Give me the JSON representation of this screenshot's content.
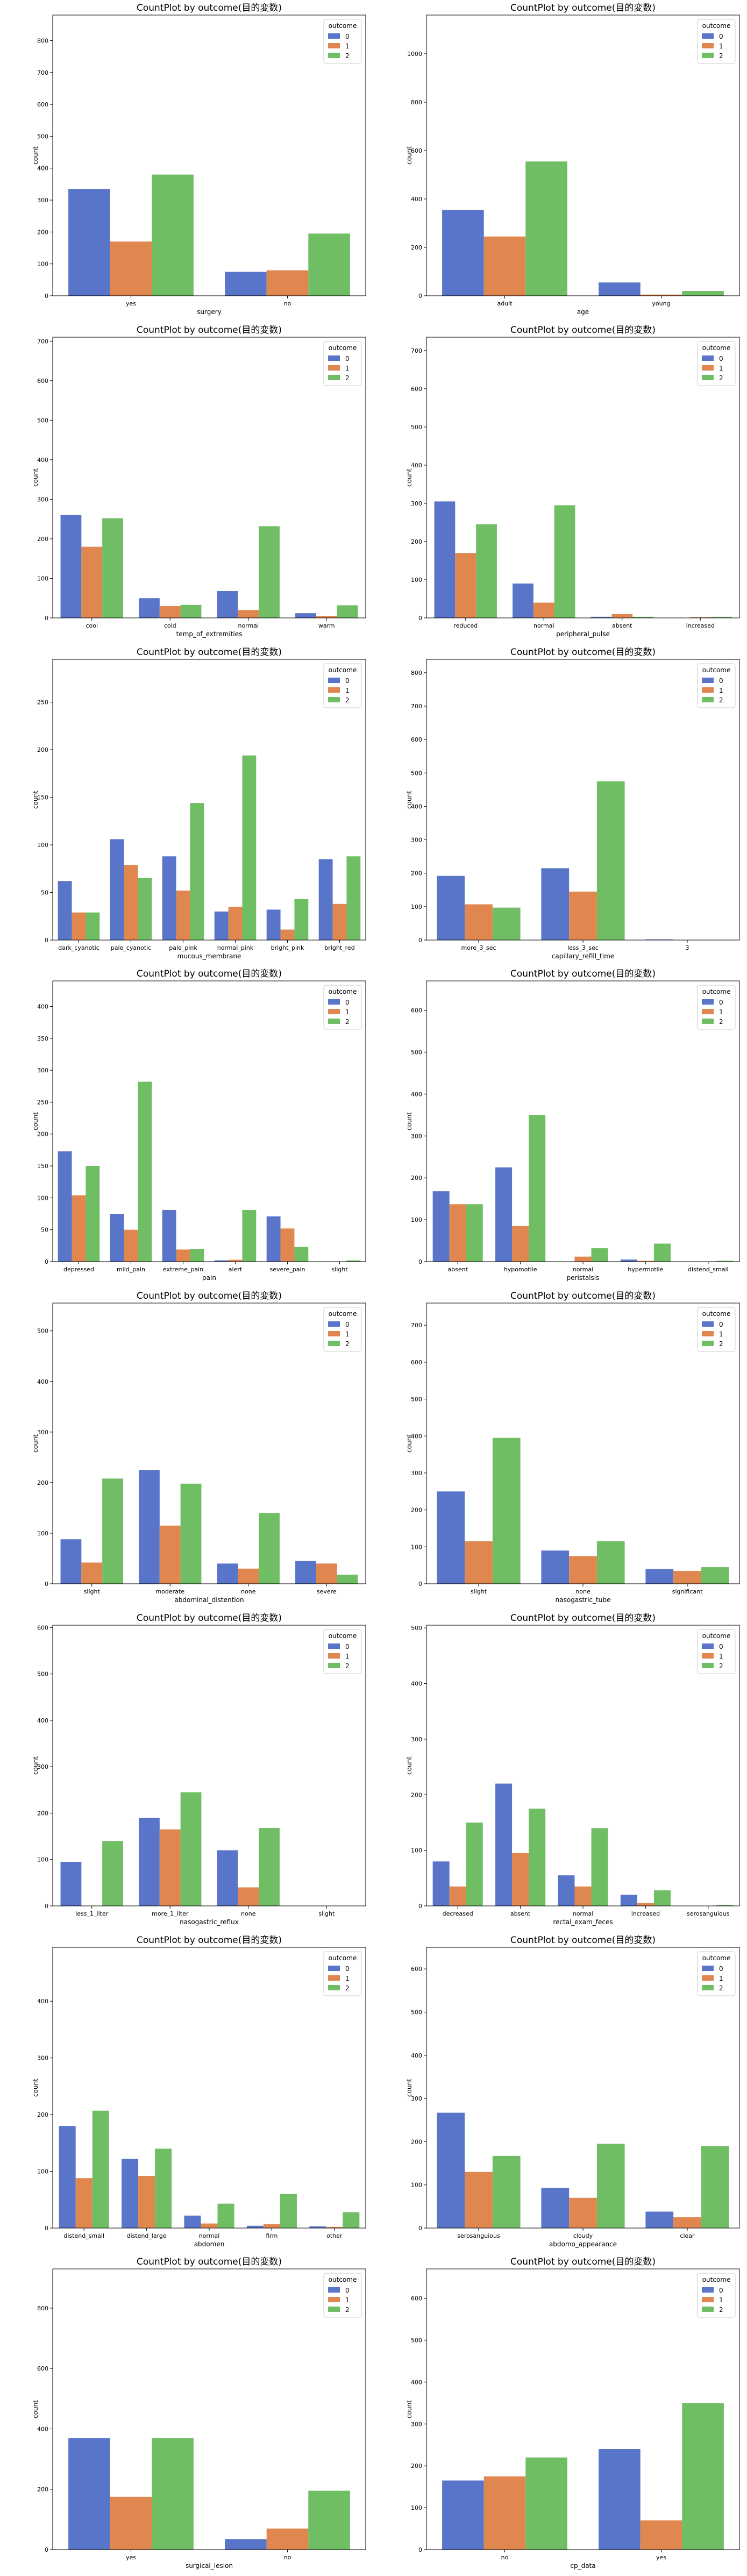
{
  "colors": {
    "0": "#5875ca",
    "1": "#e0874f",
    "2": "#70be64"
  },
  "chart_data": [
    {
      "type": "bar",
      "title": "CountPlot by outcome(目的変数)",
      "xlabel": "surgery",
      "ylabel": "count",
      "ylim": [
        0,
        880
      ],
      "yticks": [
        0,
        100,
        200,
        300,
        400,
        500,
        600,
        700,
        800
      ],
      "legend": {
        "title": "outcome",
        "position": "top-right",
        "labels": [
          "0",
          "1",
          "2"
        ]
      },
      "categories": [
        "yes",
        "no"
      ],
      "series": [
        {
          "name": "0",
          "values": [
            335,
            75
          ]
        },
        {
          "name": "1",
          "values": [
            170,
            80
          ]
        },
        {
          "name": "2",
          "values": [
            380,
            195
          ]
        }
      ]
    },
    {
      "type": "bar",
      "title": "CountPlot by outcome(目的変数)",
      "xlabel": "age",
      "ylabel": "count",
      "ylim": [
        0,
        1160
      ],
      "yticks": [
        0,
        200,
        400,
        600,
        800,
        1000
      ],
      "legend": {
        "title": "outcome",
        "position": "top-right",
        "labels": [
          "0",
          "1",
          "2"
        ]
      },
      "categories": [
        "adult",
        "young"
      ],
      "series": [
        {
          "name": "0",
          "values": [
            355,
            55
          ]
        },
        {
          "name": "1",
          "values": [
            245,
            5
          ]
        },
        {
          "name": "2",
          "values": [
            555,
            20
          ]
        }
      ]
    },
    {
      "type": "bar",
      "title": "CountPlot by outcome(目的変数)",
      "xlabel": "temp_of_extremities",
      "ylabel": "count",
      "ylim": [
        0,
        710
      ],
      "yticks": [
        0,
        100,
        200,
        300,
        400,
        500,
        600,
        700
      ],
      "legend": {
        "title": "outcome",
        "position": "top-right",
        "labels": [
          "0",
          "1",
          "2"
        ]
      },
      "categories": [
        "cool",
        "cold",
        "normal",
        "warm"
      ],
      "series": [
        {
          "name": "0",
          "values": [
            260,
            50,
            68,
            12
          ]
        },
        {
          "name": "1",
          "values": [
            180,
            30,
            20,
            5
          ]
        },
        {
          "name": "2",
          "values": [
            252,
            33,
            232,
            32
          ]
        }
      ]
    },
    {
      "type": "bar",
      "title": "CountPlot by outcome(目的変数)",
      "xlabel": "peripheral_pulse",
      "ylabel": "count",
      "ylim": [
        0,
        735
      ],
      "yticks": [
        0,
        100,
        200,
        300,
        400,
        500,
        600,
        700
      ],
      "legend": {
        "title": "outcome",
        "position": "top-right",
        "labels": [
          "0",
          "1",
          "2"
        ]
      },
      "categories": [
        "reduced",
        "normal",
        "absent",
        "increased"
      ],
      "series": [
        {
          "name": "0",
          "values": [
            305,
            90,
            3,
            0
          ]
        },
        {
          "name": "1",
          "values": [
            170,
            40,
            10,
            2
          ]
        },
        {
          "name": "2",
          "values": [
            245,
            295,
            3,
            3
          ]
        }
      ]
    },
    {
      "type": "bar",
      "title": "CountPlot by outcome(目的変数)",
      "xlabel": "mucous_membrane",
      "ylabel": "count",
      "ylim": [
        0,
        295
      ],
      "yticks": [
        0,
        50,
        100,
        150,
        200,
        250
      ],
      "legend": {
        "title": "outcome",
        "position": "top-right",
        "labels": [
          "0",
          "1",
          "2"
        ]
      },
      "categories": [
        "dark_cyanotic",
        "pale_cyanotic",
        "pale_pink",
        "normal_pink",
        "bright_pink",
        "bright_red"
      ],
      "series": [
        {
          "name": "0",
          "values": [
            62,
            106,
            88,
            30,
            32,
            85
          ]
        },
        {
          "name": "1",
          "values": [
            29,
            79,
            52,
            35,
            11,
            38
          ]
        },
        {
          "name": "2",
          "values": [
            29,
            65,
            144,
            194,
            43,
            88
          ]
        }
      ]
    },
    {
      "type": "bar",
      "title": "CountPlot by outcome(目的変数)",
      "xlabel": "capillary_refill_time",
      "ylabel": "count",
      "ylim": [
        0,
        840
      ],
      "yticks": [
        0,
        100,
        200,
        300,
        400,
        500,
        600,
        700,
        800
      ],
      "legend": {
        "title": "outcome",
        "position": "top-right",
        "labels": [
          "0",
          "1",
          "2"
        ]
      },
      "categories": [
        "more_3_sec",
        "less_3_sec",
        "3"
      ],
      "series": [
        {
          "name": "0",
          "values": [
            192,
            215,
            2
          ]
        },
        {
          "name": "1",
          "values": [
            107,
            145,
            0
          ]
        },
        {
          "name": "2",
          "values": [
            97,
            475,
            0
          ]
        }
      ]
    },
    {
      "type": "bar",
      "title": "CountPlot by outcome(目的変数)",
      "xlabel": "pain",
      "ylabel": "count",
      "ylim": [
        0,
        440
      ],
      "yticks": [
        0,
        50,
        100,
        150,
        200,
        250,
        300,
        350,
        400
      ],
      "legend": {
        "title": "outcome",
        "position": "top-right",
        "labels": [
          "0",
          "1",
          "2"
        ]
      },
      "categories": [
        "depressed",
        "mild_pain",
        "extreme_pain",
        "alert",
        "severe_pain",
        "slight"
      ],
      "series": [
        {
          "name": "0",
          "values": [
            173,
            75,
            81,
            2,
            71,
            0
          ]
        },
        {
          "name": "1",
          "values": [
            104,
            50,
            19,
            3,
            52,
            0
          ]
        },
        {
          "name": "2",
          "values": [
            150,
            282,
            20,
            81,
            23,
            2
          ]
        }
      ]
    },
    {
      "type": "bar",
      "title": "CountPlot by outcome(目的変数)",
      "xlabel": "peristalsis",
      "ylabel": "count",
      "ylim": [
        0,
        670
      ],
      "yticks": [
        0,
        100,
        200,
        300,
        400,
        500,
        600
      ],
      "legend": {
        "title": "outcome",
        "position": "top-right",
        "labels": [
          "0",
          "1",
          "2"
        ]
      },
      "categories": [
        "absent",
        "hypomotile",
        "normal",
        "hypermotile",
        "distend_small"
      ],
      "series": [
        {
          "name": "0",
          "values": [
            168,
            225,
            0,
            5,
            0
          ]
        },
        {
          "name": "1",
          "values": [
            137,
            85,
            12,
            2,
            0
          ]
        },
        {
          "name": "2",
          "values": [
            137,
            350,
            32,
            43,
            2
          ]
        }
      ]
    },
    {
      "type": "bar",
      "title": "CountPlot by outcome(目的変数)",
      "xlabel": "abdominal_distention",
      "ylabel": "count",
      "ylim": [
        0,
        555
      ],
      "yticks": [
        0,
        100,
        200,
        300,
        400,
        500
      ],
      "legend": {
        "title": "outcome",
        "position": "top-right",
        "labels": [
          "0",
          "1",
          "2"
        ]
      },
      "categories": [
        "slight",
        "moderate",
        "none",
        "severe"
      ],
      "series": [
        {
          "name": "0",
          "values": [
            88,
            225,
            40,
            45
          ]
        },
        {
          "name": "1",
          "values": [
            42,
            115,
            30,
            40
          ]
        },
        {
          "name": "2",
          "values": [
            208,
            198,
            140,
            18
          ]
        }
      ]
    },
    {
      "type": "bar",
      "title": "CountPlot by outcome(目的変数)",
      "xlabel": "nasogastric_tube",
      "ylabel": "count",
      "ylim": [
        0,
        760
      ],
      "yticks": [
        0,
        100,
        200,
        300,
        400,
        500,
        600,
        700
      ],
      "legend": {
        "title": "outcome",
        "position": "top-right",
        "labels": [
          "0",
          "1",
          "2"
        ]
      },
      "categories": [
        "slight",
        "none",
        "significant"
      ],
      "series": [
        {
          "name": "0",
          "values": [
            250,
            90,
            40
          ]
        },
        {
          "name": "1",
          "values": [
            115,
            75,
            35
          ]
        },
        {
          "name": "2",
          "values": [
            395,
            115,
            45
          ]
        }
      ]
    },
    {
      "type": "bar",
      "title": "CountPlot by outcome(目的変数)",
      "xlabel": "nasogastric_reflux",
      "ylabel": "count",
      "ylim": [
        0,
        605
      ],
      "yticks": [
        0,
        100,
        200,
        300,
        400,
        500,
        600
      ],
      "legend": {
        "title": "outcome",
        "position": "top-right",
        "labels": [
          "0",
          "1",
          "2"
        ]
      },
      "categories": [
        "less_1_liter",
        "more_1_liter",
        "none",
        "slight"
      ],
      "series": [
        {
          "name": "0",
          "values": [
            95,
            190,
            120,
            0
          ]
        },
        {
          "name": "1",
          "values": [
            0,
            165,
            40,
            0
          ]
        },
        {
          "name": "2",
          "values": [
            140,
            245,
            168,
            0
          ]
        }
      ]
    },
    {
      "type": "bar",
      "title": "CountPlot by outcome(目的変数)",
      "xlabel": "rectal_exam_feces",
      "ylabel": "count",
      "ylim": [
        0,
        505
      ],
      "yticks": [
        0,
        100,
        200,
        300,
        400,
        500
      ],
      "legend": {
        "title": "outcome",
        "position": "top-right",
        "labels": [
          "0",
          "1",
          "2"
        ]
      },
      "categories": [
        "decreased",
        "absent",
        "normal",
        "increased",
        "serosanguious"
      ],
      "series": [
        {
          "name": "0",
          "values": [
            80,
            220,
            55,
            20,
            0
          ]
        },
        {
          "name": "1",
          "values": [
            35,
            95,
            35,
            5,
            0
          ]
        },
        {
          "name": "2",
          "values": [
            150,
            175,
            140,
            28,
            2
          ]
        }
      ]
    },
    {
      "type": "bar",
      "title": "CountPlot by outcome(目的変数)",
      "xlabel": "abdomen",
      "ylabel": "count",
      "ylim": [
        0,
        495
      ],
      "yticks": [
        0,
        100,
        200,
        300,
        400
      ],
      "legend": {
        "title": "outcome",
        "position": "top-right",
        "labels": [
          "0",
          "1",
          "2"
        ]
      },
      "categories": [
        "distend_small",
        "distend_large",
        "normal",
        "firm",
        "other"
      ],
      "series": [
        {
          "name": "0",
          "values": [
            180,
            122,
            22,
            4,
            3
          ]
        },
        {
          "name": "1",
          "values": [
            88,
            92,
            8,
            7,
            2
          ]
        },
        {
          "name": "2",
          "values": [
            207,
            140,
            43,
            60,
            28
          ]
        }
      ]
    },
    {
      "type": "bar",
      "title": "CountPlot by outcome(目的変数)",
      "xlabel": "abdomo_appearance",
      "ylabel": "count",
      "ylim": [
        0,
        650
      ],
      "yticks": [
        0,
        100,
        200,
        300,
        400,
        500,
        600
      ],
      "legend": {
        "title": "outcome",
        "position": "top-right",
        "labels": [
          "0",
          "1",
          "2"
        ]
      },
      "categories": [
        "serosanguious",
        "cloudy",
        "clear"
      ],
      "series": [
        {
          "name": "0",
          "values": [
            267,
            93,
            38
          ]
        },
        {
          "name": "1",
          "values": [
            130,
            70,
            25
          ]
        },
        {
          "name": "2",
          "values": [
            167,
            195,
            190
          ]
        }
      ]
    },
    {
      "type": "bar",
      "title": "CountPlot by outcome(目的変数)",
      "xlabel": "surgical_lesion",
      "ylabel": "count",
      "ylim": [
        0,
        930
      ],
      "yticks": [
        0,
        200,
        400,
        600,
        800
      ],
      "legend": {
        "title": "outcome",
        "position": "top-right",
        "labels": [
          "0",
          "1",
          "2"
        ]
      },
      "categories": [
        "yes",
        "no"
      ],
      "series": [
        {
          "name": "0",
          "values": [
            370,
            35
          ]
        },
        {
          "name": "1",
          "values": [
            175,
            70
          ]
        },
        {
          "name": "2",
          "values": [
            370,
            195
          ]
        }
      ]
    },
    {
      "type": "bar",
      "title": "CountPlot by outcome(目的変数)",
      "xlabel": "cp_data",
      "ylabel": "count",
      "ylim": [
        0,
        670
      ],
      "yticks": [
        0,
        100,
        200,
        300,
        400,
        500,
        600
      ],
      "legend": {
        "title": "outcome",
        "position": "top-right",
        "labels": [
          "0",
          "1",
          "2"
        ]
      },
      "categories": [
        "no",
        "yes"
      ],
      "series": [
        {
          "name": "0",
          "values": [
            165,
            240
          ]
        },
        {
          "name": "1",
          "values": [
            175,
            70
          ]
        },
        {
          "name": "2",
          "values": [
            220,
            350
          ]
        }
      ]
    }
  ]
}
